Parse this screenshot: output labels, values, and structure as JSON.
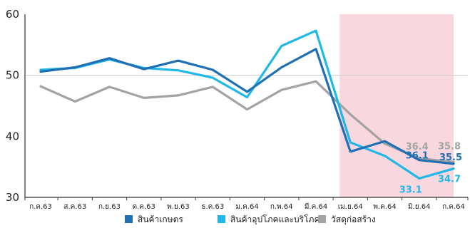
{
  "chart_data": {
    "type": "line",
    "categories": [
      "ก.ค.63",
      "ส.ค.63",
      "ก.ย.63",
      "ต.ค.63",
      "พ.ย.63",
      "ธ.ค.63",
      "ม.ค.64",
      "ก.พ.64",
      "มี.ค.64",
      "เม.ย.64",
      "พ.ค.64",
      "มิ.ย.64",
      "ก.ค.64"
    ],
    "ylim": [
      30,
      60
    ],
    "yticks": [
      "30",
      "40",
      "50",
      "60"
    ],
    "reference_line": 50,
    "highlight_range": [
      "เม.ย.64",
      "ก.ค.64"
    ],
    "highlight_color": "#f9d7df",
    "series": [
      {
        "name": "สินค้าเกษตร",
        "color": "#1f6fb5",
        "values": [
          50.6,
          51.3,
          52.8,
          51.0,
          52.4,
          50.9,
          47.3,
          51.3,
          54.3,
          37.5,
          39.2,
          36.1,
          35.5
        ]
      },
      {
        "name": "สินค้าอุปโภคและบริโภค",
        "color": "#1fb8e8",
        "values": [
          50.9,
          51.2,
          52.6,
          51.2,
          50.8,
          49.6,
          46.4,
          54.8,
          57.3,
          39.0,
          36.8,
          33.1,
          34.7
        ]
      },
      {
        "name": "วัสดุก่อสร้าง",
        "color": "#a3a3a3",
        "values": [
          48.2,
          45.7,
          48.1,
          46.3,
          46.7,
          48.1,
          44.4,
          47.6,
          49.0,
          43.6,
          38.8,
          36.4,
          35.8
        ]
      }
    ],
    "data_labels": [
      {
        "series": 2,
        "index": 11,
        "text": "36.4"
      },
      {
        "series": 0,
        "index": 11,
        "text": "36.1"
      },
      {
        "series": 1,
        "index": 11,
        "text": "33.1"
      },
      {
        "series": 2,
        "index": 12,
        "text": "35.8"
      },
      {
        "series": 0,
        "index": 12,
        "text": "35.5"
      },
      {
        "series": 1,
        "index": 12,
        "text": "34.7"
      }
    ],
    "legend": {
      "placement": "bottom"
    }
  }
}
